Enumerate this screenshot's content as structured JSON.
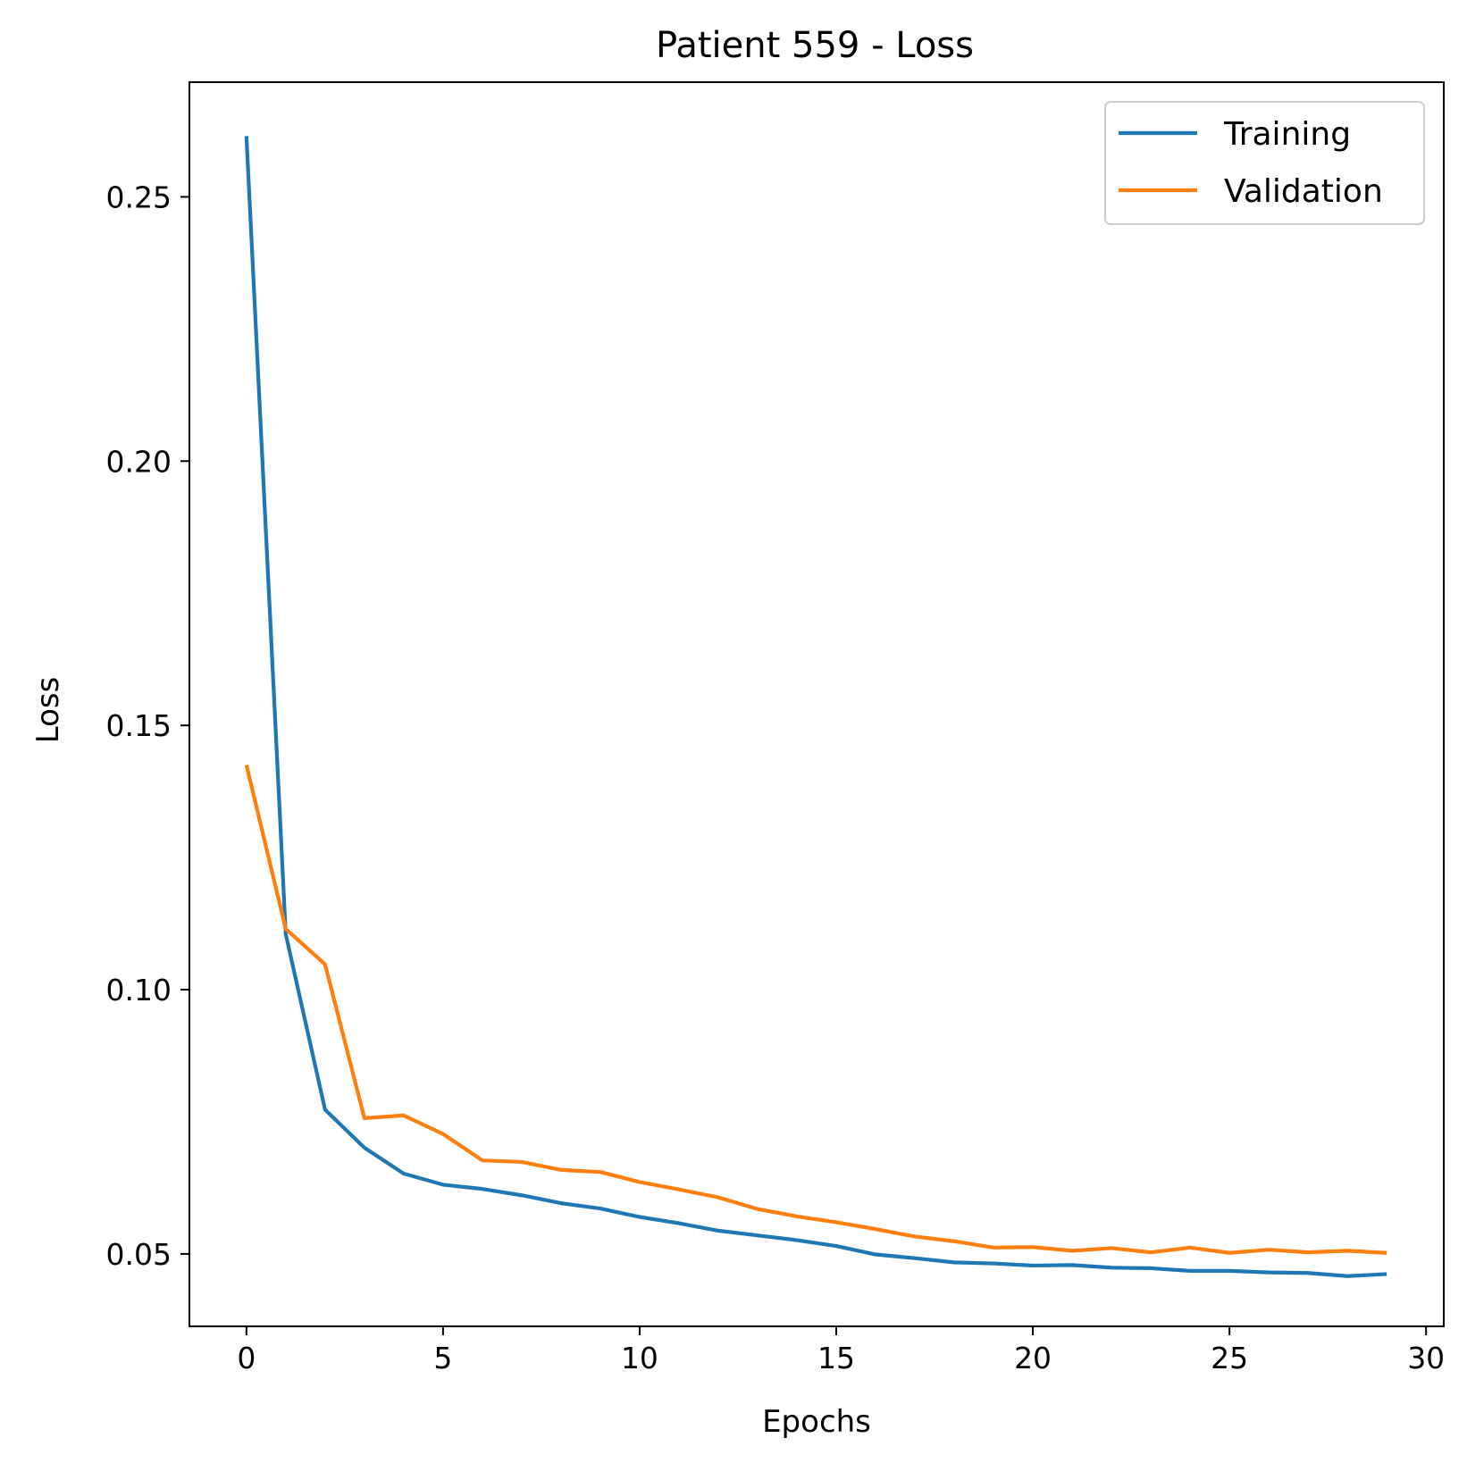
{
  "chart_data": {
    "type": "line",
    "title": "Patient 559 - Loss",
    "xlabel": "Epochs",
    "ylabel": "Loss",
    "xlim": [
      -1.45,
      30.45
    ],
    "ylim": [
      0.0363,
      0.2717
    ],
    "xticks": [
      0,
      5,
      10,
      15,
      20,
      25,
      30
    ],
    "xtick_labels": [
      "0",
      "5",
      "10",
      "15",
      "20",
      "25",
      "30"
    ],
    "yticks": [
      0.05,
      0.1,
      0.15,
      0.2,
      0.25
    ],
    "ytick_labels": [
      "0.05",
      "0.10",
      "0.15",
      "0.20",
      "0.25"
    ],
    "grid": false,
    "legend_position": "top-right",
    "x": [
      0,
      1,
      2,
      3,
      4,
      5,
      6,
      7,
      8,
      9,
      10,
      11,
      12,
      13,
      14,
      15,
      16,
      17,
      18,
      19,
      20,
      21,
      22,
      23,
      24,
      25,
      26,
      27,
      28,
      29
    ],
    "series": [
      {
        "name": "Training",
        "color": "#1f77b4",
        "values": [
          0.2615,
          0.1105,
          0.0773,
          0.0701,
          0.0652,
          0.0631,
          0.0623,
          0.0611,
          0.0596,
          0.0586,
          0.057,
          0.0558,
          0.0544,
          0.0535,
          0.0526,
          0.0515,
          0.0499,
          0.0492,
          0.0484,
          0.0482,
          0.0478,
          0.0479,
          0.0474,
          0.0473,
          0.0468,
          0.0468,
          0.0465,
          0.0464,
          0.0458,
          0.0462
        ]
      },
      {
        "name": "Validation",
        "color": "#ff7f0e",
        "values": [
          0.1425,
          0.1115,
          0.1048,
          0.0757,
          0.0762,
          0.0727,
          0.0677,
          0.0674,
          0.0659,
          0.0655,
          0.0636,
          0.0622,
          0.0607,
          0.0585,
          0.0571,
          0.056,
          0.0547,
          0.0533,
          0.0524,
          0.0512,
          0.0513,
          0.0506,
          0.0511,
          0.0503,
          0.0512,
          0.0502,
          0.0508,
          0.0503,
          0.0506,
          0.0502
        ]
      }
    ]
  }
}
